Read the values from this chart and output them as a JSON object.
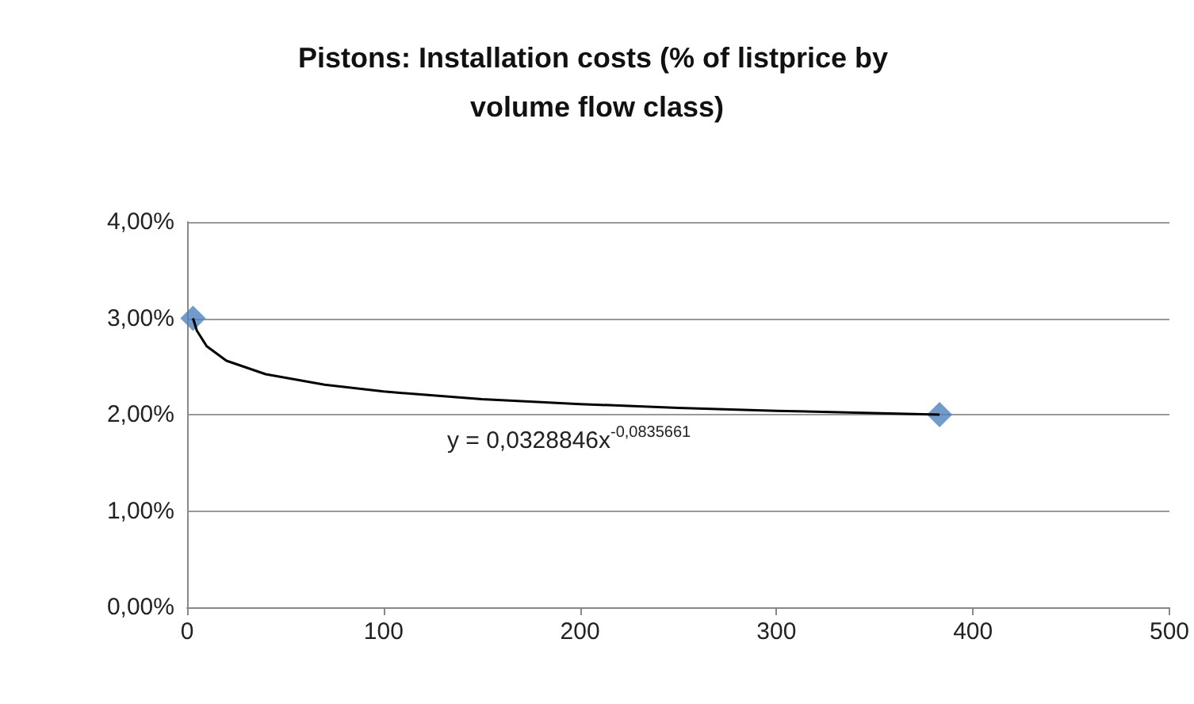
{
  "chart_data": {
    "type": "scatter",
    "title": "Pistons: Installation costs (% of listprice by volume flow class)",
    "series": [
      {
        "marker": "diamond",
        "color": "#4f81bd",
        "x": [
          3,
          383
        ],
        "values": [
          3.0,
          2.0
        ]
      },
      {
        "type": "line",
        "marker": "none",
        "color": "#000000",
        "x": [
          3,
          5,
          10,
          20,
          40,
          70,
          100,
          150,
          200,
          250,
          300,
          383
        ],
        "values": [
          3.0,
          2.87,
          2.71,
          2.56,
          2.42,
          2.31,
          2.24,
          2.16,
          2.11,
          2.07,
          2.04,
          2.0
        ]
      }
    ],
    "annotations": [
      "y = 0,0328846x$^{-0,0835661}$"
    ],
    "xlim": [
      0,
      500
    ],
    "xticks": [
      0,
      100,
      200,
      300,
      400,
      500
    ],
    "ylim": [
      0,
      4
    ],
    "yticks": [
      {
        "value": 0,
        "label": "0,00%"
      },
      {
        "value": 1,
        "label": "1,00%"
      },
      {
        "value": 2,
        "label": "2,00%"
      },
      {
        "value": 3,
        "label": "3,00%"
      },
      {
        "value": 4,
        "label": "4,00%"
      }
    ],
    "grid": "y",
    "legend": false
  }
}
